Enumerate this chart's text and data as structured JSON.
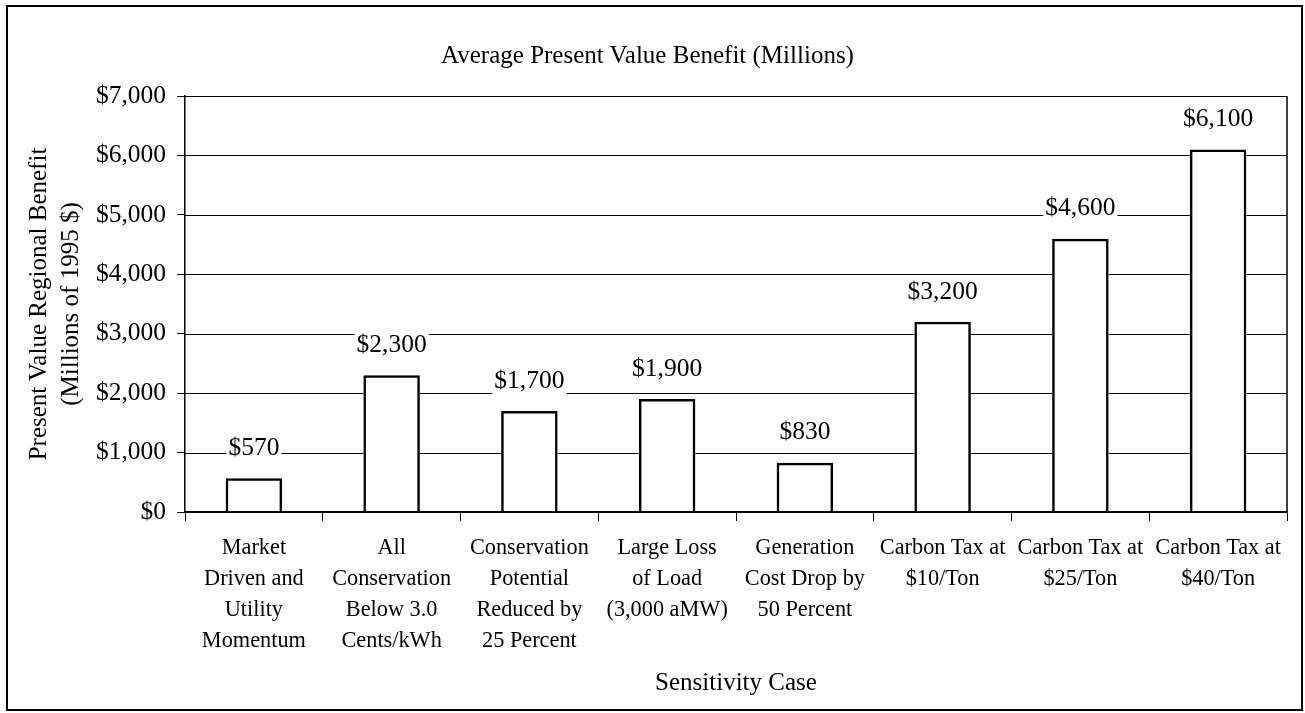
{
  "chart_data": {
    "type": "bar",
    "title": "Average Present Value Benefit (Millions)",
    "xlabel": "Sensitivity Case",
    "ylabel": "Present Value Regional Benefit\n(Millions of 1995 $)",
    "categories": [
      "Market\nDriven and\nUtility\nMomentum",
      "All\nConservation\nBelow 3.0\nCents/kWh",
      "Conservation\nPotential\nReduced by\n25 Percent",
      "Large Loss\nof Load\n(3,000 aMW)",
      "Generation\nCost Drop by\n50 Percent",
      "Carbon Tax at\n$10/Ton",
      "Carbon Tax at\n$25/Ton",
      "Carbon Tax at\n$40/Ton"
    ],
    "values": [
      570,
      2300,
      1700,
      1900,
      830,
      3200,
      4600,
      6100
    ],
    "value_labels": [
      "$570",
      "$2,300",
      "$1,700",
      "$1,900",
      "$830",
      "$3,200",
      "$4,600",
      "$6,100"
    ],
    "color": "#000000",
    "ylim": [
      0,
      7000
    ],
    "yticks": [
      {
        "value": 0,
        "label": "$0"
      },
      {
        "value": 1000,
        "label": "$1,000"
      },
      {
        "value": 2000,
        "label": "$2,000"
      },
      {
        "value": 3000,
        "label": "$3,000"
      },
      {
        "value": 4000,
        "label": "$4,000"
      },
      {
        "value": 5000,
        "label": "$5,000"
      },
      {
        "value": 6000,
        "label": "$6,000"
      },
      {
        "value": 7000,
        "label": "$7,000"
      }
    ],
    "grid": "y"
  }
}
